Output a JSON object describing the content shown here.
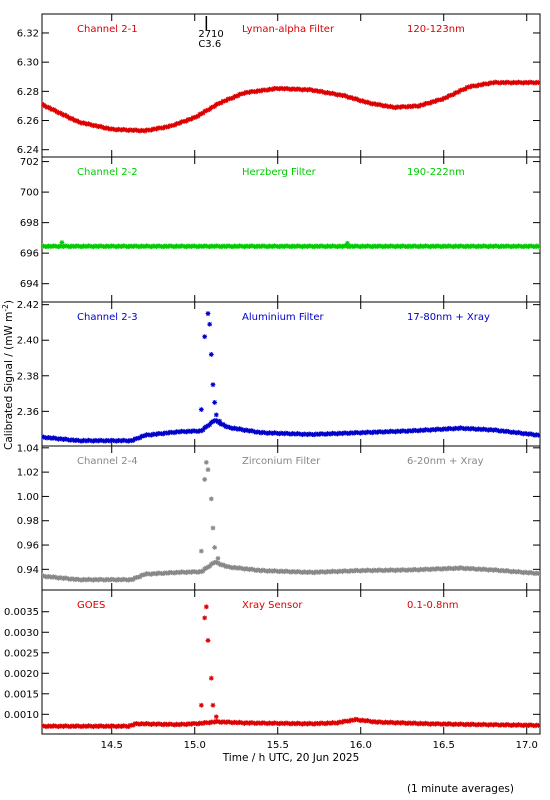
{
  "figure": {
    "ylabel": "Calibrated Signal / (mW m",
    "ylabel_sup": "-2",
    "ylabel_end": ")",
    "xlabel": "Time / h UTC, 20 Jun 2025",
    "footnote": "(1 minute averages)",
    "flare_marker": {
      "time": 15.07,
      "label_top": "2710",
      "label_bottom": "C3.6"
    }
  },
  "chart_data": [
    {
      "type": "scatter",
      "channel": "Channel 2-1",
      "filter": "Lyman-alpha Filter",
      "band": "120-123nm",
      "color": "#dd0000",
      "xlim": [
        14.08,
        17.08
      ],
      "ylim": [
        6.235,
        6.333
      ],
      "yticks": [
        6.24,
        6.26,
        6.28,
        6.3,
        6.32
      ],
      "ytick_labels": [
        "6.24",
        "6.26",
        "6.28",
        "6.30",
        "6.32"
      ],
      "curve": [
        [
          14.08,
          6.271
        ],
        [
          14.3,
          6.259
        ],
        [
          14.5,
          6.254
        ],
        [
          14.7,
          6.253
        ],
        [
          14.85,
          6.256
        ],
        [
          15.0,
          6.262
        ],
        [
          15.15,
          6.272
        ],
        [
          15.3,
          6.279
        ],
        [
          15.5,
          6.282
        ],
        [
          15.7,
          6.281
        ],
        [
          15.9,
          6.277
        ],
        [
          16.05,
          6.272
        ],
        [
          16.2,
          6.269
        ],
        [
          16.35,
          6.27
        ],
        [
          16.5,
          6.275
        ],
        [
          16.65,
          6.283
        ],
        [
          16.8,
          6.286
        ],
        [
          17.08,
          6.286
        ]
      ],
      "points": []
    },
    {
      "type": "scatter",
      "channel": "Channel 2-2",
      "filter": "Herzberg Filter",
      "band": "190-222nm",
      "color": "#00cc00",
      "xlim": [
        14.08,
        17.08
      ],
      "ylim": [
        692.8,
        702.3
      ],
      "yticks": [
        694,
        696,
        698,
        700,
        702
      ],
      "ytick_labels": [
        "694",
        "696",
        "698",
        "700",
        "702"
      ],
      "curve": [
        [
          14.08,
          696.45
        ],
        [
          17.08,
          696.45
        ]
      ],
      "points": [
        [
          14.2,
          696.7
        ],
        [
          15.92,
          696.65
        ]
      ]
    },
    {
      "type": "scatter",
      "channel": "Channel 2-3",
      "filter": "Aluminium Filter",
      "band": "17-80nm + Xray",
      "color": "#0000cc",
      "xlim": [
        14.08,
        17.08
      ],
      "ylim": [
        2.3405,
        2.4215
      ],
      "yticks": [
        2.36,
        2.38,
        2.4,
        2.42
      ],
      "ytick_labels": [
        "2.36",
        "2.38",
        "2.40",
        "2.42"
      ],
      "curve": [
        [
          14.08,
          2.3455
        ],
        [
          14.3,
          2.3435
        ],
        [
          14.62,
          2.3435
        ],
        [
          14.7,
          2.3465
        ],
        [
          14.9,
          2.3485
        ],
        [
          15.04,
          2.349
        ],
        [
          15.12,
          2.355
        ],
        [
          15.2,
          2.351
        ],
        [
          15.4,
          2.348
        ],
        [
          15.7,
          2.347
        ],
        [
          16.0,
          2.348
        ],
        [
          16.3,
          2.349
        ],
        [
          16.6,
          2.3505
        ],
        [
          16.8,
          2.3495
        ],
        [
          17.08,
          2.3465
        ]
      ],
      "points": [
        [
          15.04,
          2.361
        ],
        [
          15.06,
          2.402
        ],
        [
          15.08,
          2.415
        ],
        [
          15.09,
          2.409
        ],
        [
          15.1,
          2.392
        ],
        [
          15.11,
          2.375
        ],
        [
          15.12,
          2.365
        ],
        [
          15.13,
          2.358
        ],
        [
          15.15,
          2.3545
        ]
      ]
    },
    {
      "type": "scatter",
      "channel": "Channel 2-4",
      "filter": "Zirconium Filter",
      "band": "6-20nm + Xray",
      "color": "#888888",
      "xlim": [
        14.08,
        17.08
      ],
      "ylim": [
        0.923,
        1.0415
      ],
      "yticks": [
        0.94,
        0.96,
        0.98,
        1.0,
        1.02,
        1.04
      ],
      "ytick_labels": [
        "0.94",
        "0.96",
        "0.98",
        "1.00",
        "1.02",
        "1.04"
      ],
      "curve": [
        [
          14.08,
          0.9345
        ],
        [
          14.3,
          0.9315
        ],
        [
          14.62,
          0.9315
        ],
        [
          14.7,
          0.936
        ],
        [
          14.9,
          0.9375
        ],
        [
          15.04,
          0.938
        ],
        [
          15.12,
          0.946
        ],
        [
          15.2,
          0.942
        ],
        [
          15.4,
          0.939
        ],
        [
          15.7,
          0.9375
        ],
        [
          16.0,
          0.939
        ],
        [
          16.3,
          0.9395
        ],
        [
          16.6,
          0.941
        ],
        [
          16.8,
          0.9395
        ],
        [
          17.08,
          0.9365
        ]
      ],
      "points": [
        [
          15.04,
          0.955
        ],
        [
          15.06,
          1.014
        ],
        [
          15.07,
          1.028
        ],
        [
          15.08,
          1.022
        ],
        [
          15.1,
          0.998
        ],
        [
          15.11,
          0.974
        ],
        [
          15.12,
          0.958
        ],
        [
          15.14,
          0.949
        ]
      ]
    },
    {
      "type": "scatter",
      "channel": "GOES",
      "filter": "Xray Sensor",
      "band": "0.1-0.8nm",
      "color": "#dd0000",
      "xlim": [
        14.08,
        17.08
      ],
      "ylim": [
        0.00052,
        0.00403
      ],
      "yticks": [
        0.001,
        0.0015,
        0.002,
        0.0025,
        0.003,
        0.0035
      ],
      "ytick_labels": [
        "0.0010",
        "0.0015",
        "0.0020",
        "0.0025",
        "0.0030",
        "0.0035"
      ],
      "curve": [
        [
          14.08,
          0.00071
        ],
        [
          14.6,
          0.00071
        ],
        [
          14.65,
          0.00077
        ],
        [
          14.9,
          0.00075
        ],
        [
          15.04,
          0.00078
        ],
        [
          15.13,
          0.00082
        ],
        [
          15.3,
          0.00079
        ],
        [
          15.7,
          0.00077
        ],
        [
          15.85,
          0.00079
        ],
        [
          15.97,
          0.00087
        ],
        [
          16.1,
          0.00081
        ],
        [
          16.4,
          0.00077
        ],
        [
          16.7,
          0.00075
        ],
        [
          17.08,
          0.00073
        ]
      ],
      "points": [
        [
          15.04,
          0.00122
        ],
        [
          15.06,
          0.00335
        ],
        [
          15.07,
          0.00362
        ],
        [
          15.08,
          0.0028
        ],
        [
          15.1,
          0.00188
        ],
        [
          15.11,
          0.00122
        ],
        [
          15.13,
          0.00094
        ]
      ]
    }
  ],
  "xaxis": {
    "ticks": [
      14.5,
      15.0,
      15.5,
      16.0,
      16.5,
      17.0
    ],
    "tick_labels": [
      "14.5",
      "15.0",
      "15.5",
      "16.0",
      "16.5",
      "17.0"
    ]
  }
}
